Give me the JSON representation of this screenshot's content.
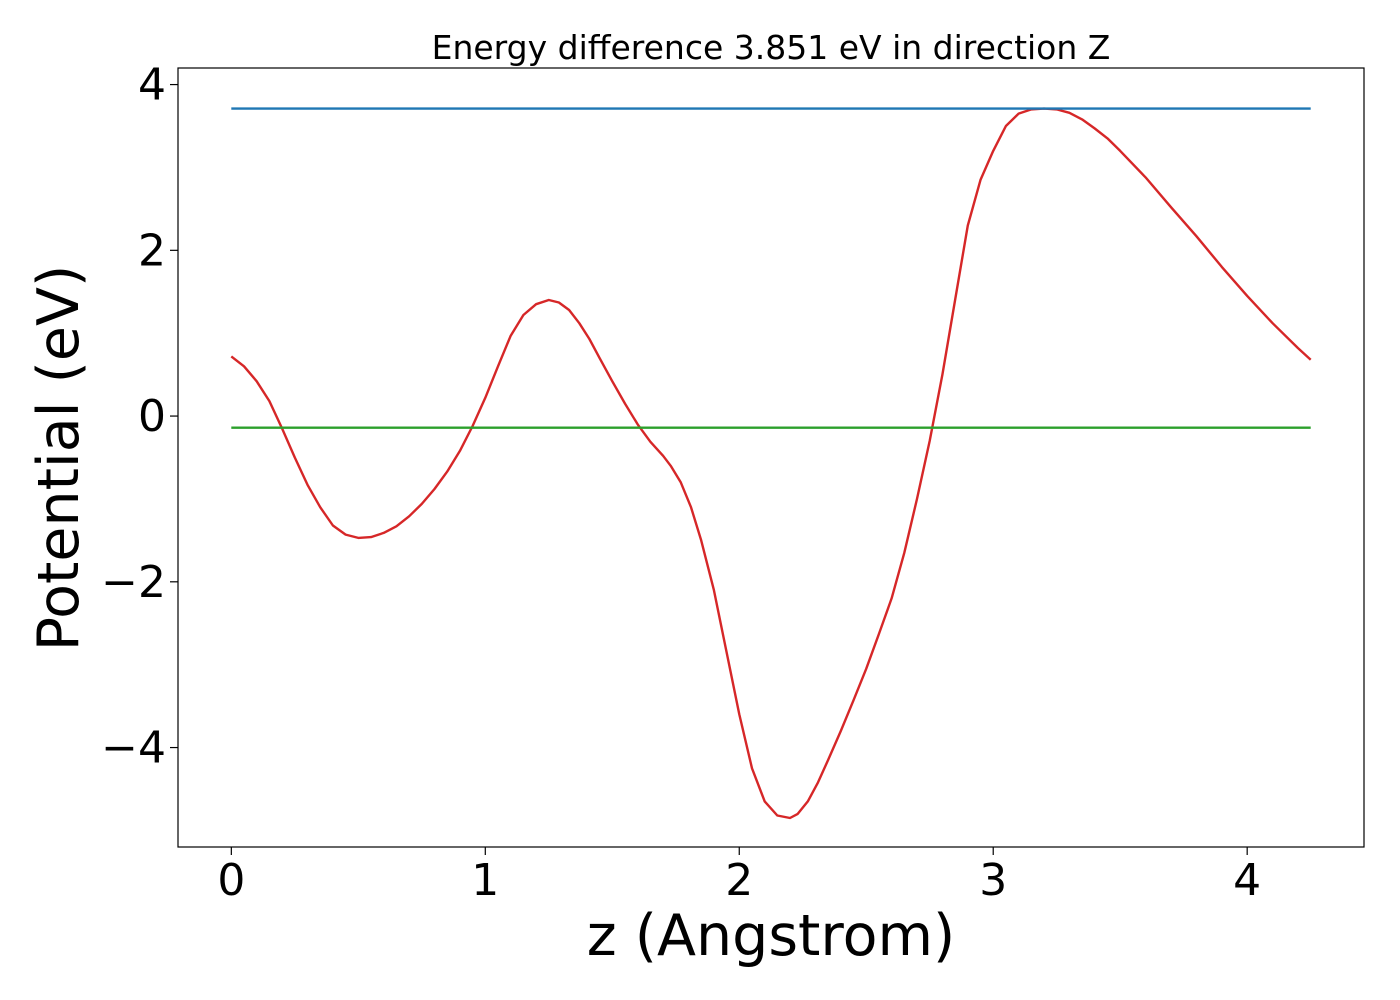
{
  "chart_data": {
    "type": "line",
    "title": "Energy difference 3.851 eV in direction Z",
    "xlabel": "z (Angstrom)",
    "ylabel": "Potential (eV)",
    "xlim": [
      -0.21,
      4.46
    ],
    "ylim": [
      -5.2,
      4.2
    ],
    "xticks": [
      0,
      1,
      2,
      3,
      4
    ],
    "xtick_labels": [
      "0",
      "1",
      "2",
      "3",
      "4"
    ],
    "yticks": [
      -4,
      -2,
      0,
      2,
      4
    ],
    "ytick_labels": [
      "−4",
      "−2",
      "0",
      "2",
      "4"
    ],
    "grid": false,
    "series": [
      {
        "color": "#d62728",
        "x": [
          0,
          0.05,
          0.1,
          0.15,
          0.2,
          0.25,
          0.3,
          0.35,
          0.4,
          0.45,
          0.5,
          0.55,
          0.6,
          0.65,
          0.7,
          0.75,
          0.8,
          0.85,
          0.9,
          0.95,
          1.0,
          1.05,
          1.1,
          1.15,
          1.2,
          1.25,
          1.29,
          1.33,
          1.37,
          1.41,
          1.45,
          1.5,
          1.55,
          1.6,
          1.65,
          1.7,
          1.73,
          1.77,
          1.81,
          1.85,
          1.9,
          1.95,
          2.0,
          2.05,
          2.1,
          2.15,
          2.2,
          2.23,
          2.27,
          2.31,
          2.35,
          2.4,
          2.45,
          2.5,
          2.55,
          2.6,
          2.65,
          2.7,
          2.75,
          2.8,
          2.85,
          2.9,
          2.95,
          3.0,
          3.05,
          3.1,
          3.15,
          3.2,
          3.25,
          3.3,
          3.35,
          3.4,
          3.45,
          3.5,
          3.6,
          3.7,
          3.8,
          3.9,
          4.0,
          4.1,
          4.2,
          4.25
        ],
        "y": [
          0.72,
          0.6,
          0.42,
          0.18,
          -0.15,
          -0.5,
          -0.83,
          -1.1,
          -1.32,
          -1.43,
          -1.47,
          -1.46,
          -1.41,
          -1.33,
          -1.21,
          -1.06,
          -0.88,
          -0.67,
          -0.42,
          -0.12,
          0.22,
          0.6,
          0.97,
          1.22,
          1.35,
          1.4,
          1.37,
          1.28,
          1.12,
          0.93,
          0.7,
          0.42,
          0.15,
          -0.1,
          -0.31,
          -0.48,
          -0.6,
          -0.8,
          -1.1,
          -1.5,
          -2.1,
          -2.85,
          -3.6,
          -4.25,
          -4.65,
          -4.82,
          -4.85,
          -4.8,
          -4.65,
          -4.42,
          -4.15,
          -3.8,
          -3.43,
          -3.05,
          -2.63,
          -2.2,
          -1.65,
          -1.0,
          -0.3,
          0.5,
          1.4,
          2.3,
          2.85,
          3.2,
          3.5,
          3.65,
          3.7,
          3.71,
          3.7,
          3.66,
          3.58,
          3.47,
          3.35,
          3.2,
          2.88,
          2.52,
          2.17,
          1.8,
          1.45,
          1.12,
          0.82,
          0.68
        ]
      },
      {
        "color": "#1f77b4",
        "x": [
          0,
          4.25
        ],
        "y": [
          3.71,
          3.71
        ]
      },
      {
        "color": "#2ca02c",
        "x": [
          0,
          4.25
        ],
        "y": [
          -0.14,
          -0.14
        ]
      }
    ]
  }
}
